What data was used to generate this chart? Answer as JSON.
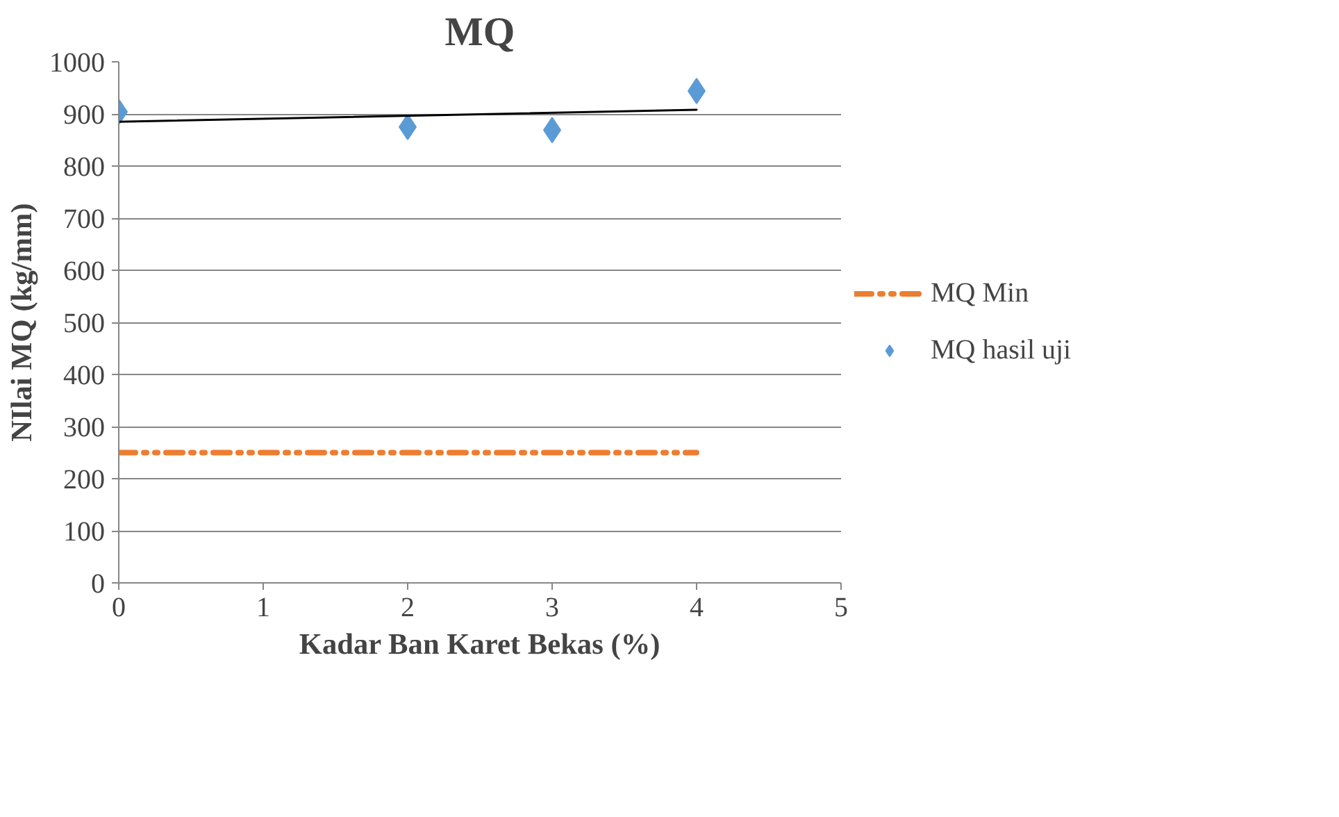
{
  "chart_data": {
    "type": "scatter",
    "title": "MQ",
    "xlabel": "Kadar Ban Karet Bekas (%)",
    "ylabel": "NIlai MQ (kg/mm)",
    "xlim": [
      0,
      5
    ],
    "xticks": [
      0,
      1,
      2,
      3,
      4,
      5
    ],
    "ylim": [
      0,
      1000
    ],
    "yticks": [
      0,
      100,
      200,
      300,
      400,
      500,
      600,
      700,
      800,
      900,
      1000
    ],
    "grid": "y",
    "legend": "right",
    "series": [
      {
        "name": "MQ Min",
        "type": "line",
        "color": "#ed7d31",
        "line_style": "dashed",
        "x": [
          0,
          4
        ],
        "values": [
          250,
          250
        ]
      },
      {
        "name": "MQ hasil uji",
        "color": "#5b9bd5",
        "marker": "diamond",
        "x": [
          0,
          2,
          3,
          4
        ],
        "values": [
          904,
          875,
          869,
          944
        ]
      },
      {
        "type": "line",
        "color": "#000000",
        "line_style": "solid",
        "x": [
          0,
          4
        ],
        "values": [
          885,
          908
        ]
      }
    ]
  }
}
